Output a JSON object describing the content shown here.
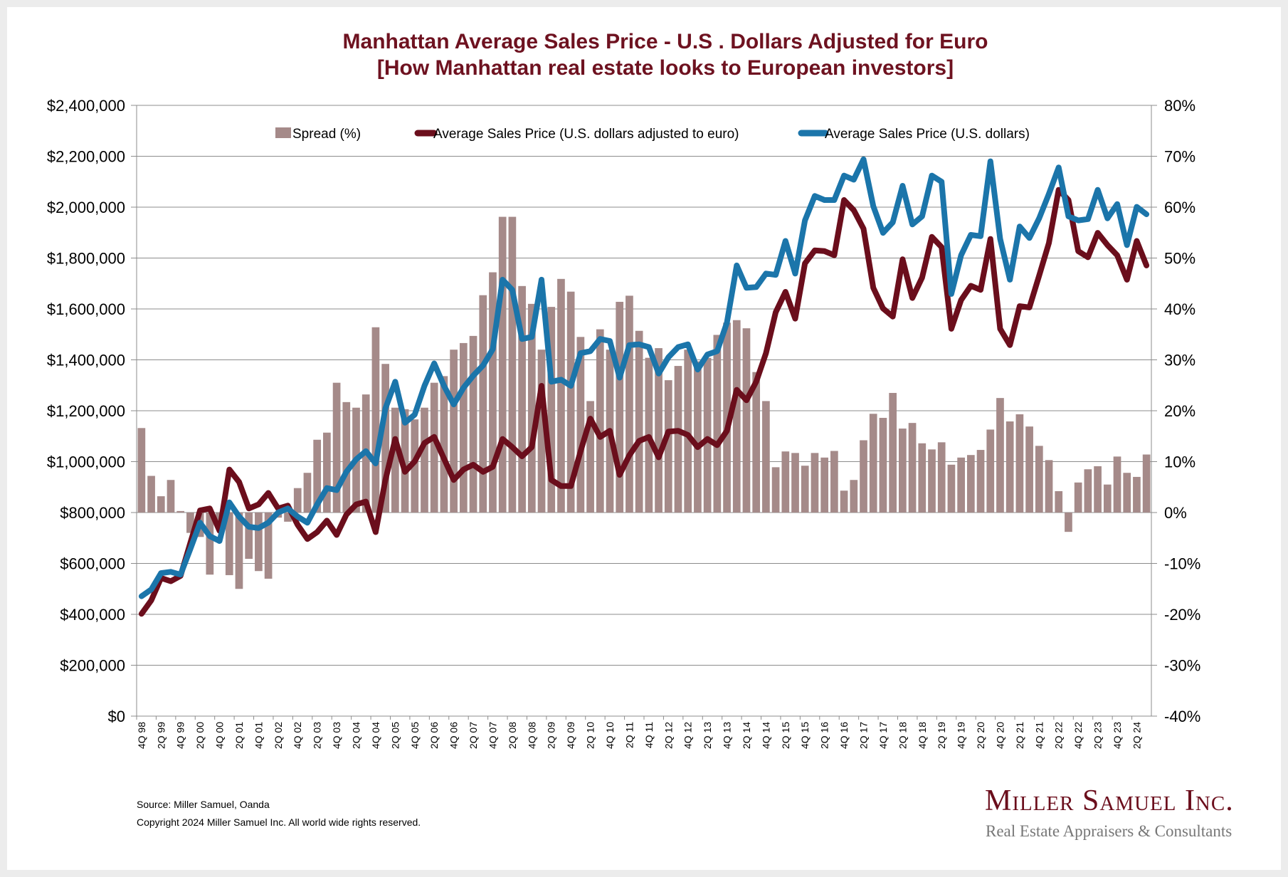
{
  "chart_data": {
    "type": "bar+line",
    "title": [
      "Manhattan Average Sales Price - U.S . Dollars Adjusted for Euro",
      "[How Manhattan real estate looks to European investors]"
    ],
    "x_tick_labels": [
      "4Q 98",
      "2Q 99",
      "4Q 99",
      "2Q 00",
      "4Q 00",
      "2Q 01",
      "4Q 01",
      "2Q 02",
      "4Q 02",
      "2Q 03",
      "4Q 03",
      "2Q 04",
      "4Q 04",
      "2Q 05",
      "4Q 05",
      "2Q 06",
      "4Q 06",
      "2Q 07",
      "4Q 07",
      "2Q 08",
      "4Q 08",
      "2Q 09",
      "4Q 09",
      "2Q 10",
      "4Q 10",
      "2Q 11",
      "4Q 11",
      "2Q 12",
      "4Q 12",
      "2Q 13",
      "4Q 13",
      "2Q 14",
      "4Q 14",
      "2Q 15",
      "4Q 15",
      "2Q 16",
      "4Q 16",
      "2Q 17",
      "4Q 17",
      "2Q 18",
      "4Q 18",
      "2Q 19",
      "4Q 19",
      "2Q 20",
      "4Q 20",
      "2Q 21",
      "4Q 21",
      "2Q 22",
      "4Q 22",
      "2Q 23",
      "4Q 23",
      "2Q 24"
    ],
    "quarters_per_tick_label": 2,
    "y_left": {
      "ticks": [
        "$0",
        "$200,000",
        "$400,000",
        "$600,000",
        "$800,000",
        "$1,000,000",
        "$1,200,000",
        "$1,400,000",
        "$1,600,000",
        "$1,800,000",
        "$2,000,000",
        "$2,200,000",
        "$2,400,000"
      ],
      "range": [
        0,
        2400000
      ]
    },
    "y_right": {
      "ticks": [
        "-40%",
        "-30%",
        "-20%",
        "-10%",
        "0%",
        "10%",
        "20%",
        "30%",
        "40%",
        "50%",
        "60%",
        "70%",
        "80%"
      ],
      "range": [
        -40,
        80
      ]
    },
    "grid": true,
    "legend_position": "top",
    "series": [
      {
        "name": "Spread (%)",
        "type": "bar",
        "axis": "right",
        "color": "#a58a89",
        "values": [
          16.6,
          7.2,
          3.2,
          6.4,
          0.3,
          -4.0,
          -4.8,
          -12.2,
          -2,
          -12.3,
          -15,
          -9.1,
          -11.5,
          -13,
          -1,
          -1.8,
          4.8,
          7.8,
          14.3,
          15.7,
          25.5,
          21.7,
          20.6,
          23.2,
          36.4,
          29.2,
          20.6,
          20.3,
          18.3,
          20.6,
          25.5,
          26.8,
          32.0,
          33.3,
          34.7,
          42.7,
          47.2,
          58.1,
          58.1,
          44.5,
          41.0,
          32.0,
          40.4,
          45.9,
          43.4,
          34.5,
          21.9,
          36.0,
          32.0,
          41.4,
          42.6,
          35.7,
          30.4,
          32.3,
          26.0,
          28.8,
          32,
          29.7,
          30.4,
          34.9,
          37.3,
          37.8,
          36.2,
          27.6,
          21.9,
          8.9,
          12.0,
          11.7,
          9.2,
          11.7,
          10.8,
          12.1,
          4.3,
          6.4,
          14.2,
          19.4,
          18.6,
          23.5,
          16.5,
          17.6,
          13.6,
          12.4,
          13.8,
          9.4,
          10.8,
          11.3,
          12.3,
          16.3,
          22.5,
          17.9,
          19.3,
          16.9,
          13.1,
          10.3,
          4.2,
          -3.8,
          5.9,
          8.5,
          9.1,
          5.5,
          11.0,
          7.8,
          7.0,
          11.4
        ]
      },
      {
        "name": "Average Sales Price (U.S. dollars adjusted to euro)",
        "type": "line",
        "axis": "left",
        "color": "#6b0e1c",
        "values": [
          402000,
          455000,
          543000,
          530000,
          551000,
          680000,
          808000,
          816000,
          728000,
          969000,
          920000,
          816000,
          832000,
          877000,
          816000,
          827000,
          752000,
          696000,
          723000,
          768000,
          712000,
          792000,
          832000,
          843000,
          723000,
          928000,
          1089000,
          960000,
          1001000,
          1073000,
          1097000,
          1012000,
          928000,
          969000,
          988000,
          960000,
          980000,
          1089000,
          1057000,
          1021000,
          1057000,
          1298000,
          928000,
          904000,
          904000,
          1041000,
          1169000,
          1097000,
          1121000,
          948000,
          1025000,
          1081000,
          1097000,
          1017000,
          1118000,
          1121000,
          1105000,
          1057000,
          1089000,
          1065000,
          1121000,
          1282000,
          1241000,
          1314000,
          1426000,
          1587000,
          1667000,
          1562000,
          1779000,
          1830000,
          1827000,
          1811000,
          2028000,
          1988000,
          1915000,
          1683000,
          1602000,
          1570000,
          1795000,
          1643000,
          1723000,
          1883000,
          1843000,
          1522000,
          1635000,
          1691000,
          1675000,
          1875000,
          1522000,
          1458000,
          1611000,
          1606000,
          1731000,
          1859000,
          2068000,
          2028000,
          1827000,
          1803000,
          1899000,
          1851000,
          1811000,
          1715000,
          1867000,
          1771000
        ]
      },
      {
        "name": "Average Sales Price (U.S. dollars)",
        "type": "line",
        "axis": "left",
        "color": "#1b75aa",
        "values": [
          471000,
          498000,
          562000,
          567000,
          556000,
          656000,
          760000,
          707000,
          688000,
          840000,
          784000,
          744000,
          739000,
          760000,
          800000,
          816000,
          784000,
          760000,
          832000,
          896000,
          888000,
          960000,
          1009000,
          1041000,
          993000,
          1209000,
          1314000,
          1153000,
          1185000,
          1298000,
          1386000,
          1298000,
          1225000,
          1290000,
          1338000,
          1378000,
          1442000,
          1715000,
          1675000,
          1482000,
          1490000,
          1715000,
          1314000,
          1322000,
          1298000,
          1426000,
          1434000,
          1482000,
          1474000,
          1330000,
          1458000,
          1461000,
          1450000,
          1346000,
          1410000,
          1450000,
          1461000,
          1362000,
          1421000,
          1434000,
          1546000,
          1771000,
          1683000,
          1686000,
          1739000,
          1734000,
          1867000,
          1739000,
          1948000,
          2044000,
          2028000,
          2028000,
          2124000,
          2108000,
          2188000,
          2004000,
          1899000,
          1940000,
          2084000,
          1932000,
          1964000,
          2124000,
          2100000,
          1659000,
          1811000,
          1891000,
          1886000,
          2180000,
          1875000,
          1715000,
          1924000,
          1879000,
          1956000,
          2052000,
          2156000,
          1964000,
          1948000,
          1953000,
          2068000,
          1956000,
          2012000,
          1851000,
          2001000,
          1972000
        ]
      }
    ]
  },
  "footer": {
    "source": "Source: Miller Samuel, Oanda",
    "copyright": "Copyright 2024 Miller Samuel Inc.  All world wide rights reserved."
  },
  "logo": {
    "name": "Miller Samuel Inc.",
    "tagline": "Real Estate Appraisers & Consultants"
  }
}
